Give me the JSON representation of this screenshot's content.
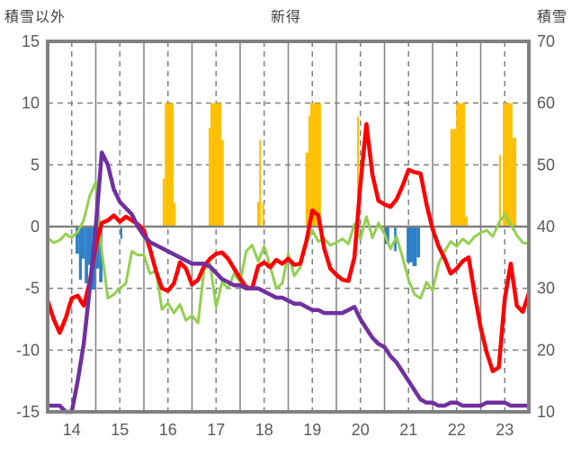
{
  "header": {
    "left_axis_title": "積雪以外",
    "title": "新得",
    "right_axis_title": "積雪"
  },
  "colors": {
    "temperature_red": "#ff0000",
    "green_line": "#92d050",
    "snow_depth_purple": "#7030a0",
    "sunshine_orange": "#ffc000",
    "precip_blue": "#2e80c8",
    "grid": "#808080",
    "frame": "#808080",
    "text": "#595959"
  },
  "chart_data": {
    "type": "line",
    "title": "新得",
    "left_axis": {
      "label": "積雪以外",
      "range": [
        -15,
        15
      ],
      "ticks": [
        15,
        10,
        5,
        0,
        -5,
        -10,
        -15
      ]
    },
    "right_axis": {
      "label": "積雪",
      "range": [
        10,
        70
      ],
      "ticks": [
        70,
        60,
        50,
        40,
        30,
        20,
        10
      ]
    },
    "x_axis": {
      "range": [
        14,
        24
      ],
      "day_labels": [
        14,
        15,
        16,
        17,
        18,
        19,
        20,
        21,
        22,
        23
      ]
    },
    "grid": {
      "h_dashed_left_values": [
        10,
        5,
        -5,
        -10
      ],
      "h_solid_left_values": [
        0
      ],
      "v_solid_days": [
        15,
        16,
        17,
        18,
        19,
        20,
        21,
        22,
        23
      ],
      "v_dashed_days": [
        14.5,
        15.5,
        16.5,
        17.5,
        18.5,
        19.5,
        20.5,
        21.5,
        22.5,
        23.5
      ]
    },
    "sampling": {
      "x_start": 14,
      "x_step": 0.125,
      "points": 81
    },
    "series": [
      {
        "name": "temperature-red",
        "type": "line",
        "axis": "left",
        "color": "#ff0000",
        "width": 4.5,
        "values": [
          -6.0,
          -7.5,
          -8.6,
          -7.4,
          -5.8,
          -5.6,
          -6.4,
          -4.5,
          -1.5,
          0.3,
          0.5,
          0.9,
          0.4,
          0.8,
          0.5,
          0.2,
          -0.3,
          -1.8,
          -3.6,
          -5.0,
          -5.2,
          -4.6,
          -2.9,
          -3.4,
          -4.7,
          -4.3,
          -3.2,
          -2.6,
          -2.2,
          -2.1,
          -2.6,
          -3.4,
          -4.2,
          -4.9,
          -5.0,
          -3.2,
          -2.9,
          -3.3,
          -2.7,
          -3.0,
          -2.6,
          -3.1,
          -3.0,
          -1.2,
          1.3,
          0.9,
          -1.8,
          -3.4,
          -3.9,
          -4.3,
          -4.4,
          -2.5,
          3.5,
          8.3,
          4.2,
          2.1,
          1.8,
          1.6,
          2.2,
          3.3,
          4.6,
          4.4,
          4.3,
          1.8,
          -0.2,
          -1.6,
          -2.6,
          -3.8,
          -3.4,
          -2.8,
          -2.5,
          -5.5,
          -8.2,
          -10.2,
          -11.7,
          -11.4,
          -5.8,
          -3.0,
          -6.4,
          -6.9,
          -5.4
        ]
      },
      {
        "name": "green-line",
        "type": "line",
        "axis": "left",
        "color": "#92d050",
        "width": 3,
        "values": [
          -0.9,
          -1.3,
          -1.1,
          -0.6,
          -0.9,
          -0.4,
          0.5,
          2.5,
          3.6,
          -2.0,
          -5.8,
          -5.5,
          -5.0,
          -4.6,
          -2.0,
          -2.3,
          -2.3,
          -3.8,
          -3.6,
          -6.7,
          -6.2,
          -7.0,
          -6.3,
          -7.6,
          -7.2,
          -7.8,
          -3.5,
          -3.0,
          -6.5,
          -4.5,
          -5.0,
          -3.8,
          -4.5,
          -2.0,
          -1.5,
          -2.8,
          -1.6,
          -3.2,
          -5.0,
          -4.6,
          -2.2,
          -4.0,
          -3.3,
          -1.3,
          -0.3,
          -1.2,
          -1.0,
          -1.5,
          -1.3,
          -1.0,
          -1.4,
          0.2,
          -1.0,
          0.8,
          -0.9,
          0.3,
          -0.6,
          -1.8,
          -0.8,
          -2.5,
          -4.3,
          -5.5,
          -5.8,
          -4.5,
          -5.2,
          -3.0,
          -2.0,
          -1.2,
          -1.6,
          -1.0,
          -1.4,
          -0.8,
          -0.5,
          -0.3,
          -0.8,
          0.3,
          1.0,
          0.2,
          -0.7,
          -1.3,
          -1.4
        ]
      },
      {
        "name": "snow-depth-purple",
        "type": "line",
        "axis": "right",
        "color": "#7030a0",
        "width": 4.5,
        "values": [
          11,
          11,
          11,
          10,
          10,
          15,
          21,
          30,
          40,
          52,
          50,
          46,
          44,
          43,
          42,
          40,
          38.5,
          37.5,
          37,
          36.5,
          36,
          35.5,
          35,
          34.5,
          34,
          34,
          34,
          33.5,
          32.5,
          31.5,
          31,
          30.5,
          30.5,
          30,
          30,
          30,
          29.5,
          29,
          28.5,
          28.5,
          28,
          27.5,
          27.5,
          27,
          26.5,
          26.5,
          26,
          26,
          26,
          26,
          26.5,
          27,
          25,
          23.5,
          22,
          21,
          20.5,
          19,
          18,
          16.5,
          15,
          13.5,
          12,
          11.5,
          11.5,
          11,
          11,
          11.5,
          11.5,
          11,
          11,
          11,
          11,
          11.5,
          11.5,
          11.5,
          11.5,
          11,
          11,
          11,
          11
        ]
      },
      {
        "name": "sunshine-bars-orange",
        "type": "bar",
        "axis": "left",
        "color": "#ffc000",
        "bars": [
          {
            "x": 16.39,
            "w": 0.045,
            "v": 3.9
          },
          {
            "x": 16.435,
            "w": 0.185,
            "v": 10
          },
          {
            "x": 16.62,
            "w": 0.04,
            "v": 1.9
          },
          {
            "x": 17.345,
            "w": 0.04,
            "v": 8.0
          },
          {
            "x": 17.385,
            "w": 0.225,
            "v": 10
          },
          {
            "x": 17.61,
            "w": 0.05,
            "v": 7.0
          },
          {
            "x": 18.355,
            "w": 0.025,
            "v": 2.0
          },
          {
            "x": 18.395,
            "w": 0.025,
            "v": 7.0
          },
          {
            "x": 18.46,
            "w": 0.025,
            "v": 1.9
          },
          {
            "x": 19.36,
            "w": 0.06,
            "v": 6.0
          },
          {
            "x": 19.42,
            "w": 0.04,
            "v": 9.0
          },
          {
            "x": 19.46,
            "w": 0.22,
            "v": 10
          },
          {
            "x": 20.43,
            "w": 0.04,
            "v": 8.9
          },
          {
            "x": 22.37,
            "w": 0.12,
            "v": 7.9
          },
          {
            "x": 22.49,
            "w": 0.185,
            "v": 10
          },
          {
            "x": 22.675,
            "w": 0.05,
            "v": 0.8
          },
          {
            "x": 23.38,
            "w": 0.04,
            "v": 5.8
          },
          {
            "x": 23.46,
            "w": 0.2,
            "v": 10
          },
          {
            "x": 23.66,
            "w": 0.08,
            "v": 7.2
          }
        ]
      },
      {
        "name": "precip-bars-blue",
        "type": "bar",
        "axis": "left",
        "color": "#2e80c8",
        "bars": [
          {
            "x": 14.58,
            "w": 0.07,
            "v": -2.2
          },
          {
            "x": 14.65,
            "w": 0.06,
            "v": -4.3
          },
          {
            "x": 14.71,
            "w": 0.06,
            "v": -2.6
          },
          {
            "x": 14.77,
            "w": 0.07,
            "v": -4.6
          },
          {
            "x": 14.84,
            "w": 0.08,
            "v": -3.1
          },
          {
            "x": 14.92,
            "w": 0.07,
            "v": -5.1
          },
          {
            "x": 14.99,
            "w": 0.08,
            "v": -3.4
          },
          {
            "x": 15.07,
            "w": 0.07,
            "v": -4.5
          },
          {
            "x": 15.51,
            "w": 0.04,
            "v": -1.0
          },
          {
            "x": 21.01,
            "w": 0.09,
            "v": -1.4
          },
          {
            "x": 21.2,
            "w": 0.05,
            "v": -2.0
          },
          {
            "x": 21.46,
            "w": 0.12,
            "v": -2.9
          },
          {
            "x": 21.58,
            "w": 0.09,
            "v": -3.2
          },
          {
            "x": 21.67,
            "w": 0.07,
            "v": -2.5
          }
        ]
      }
    ]
  }
}
